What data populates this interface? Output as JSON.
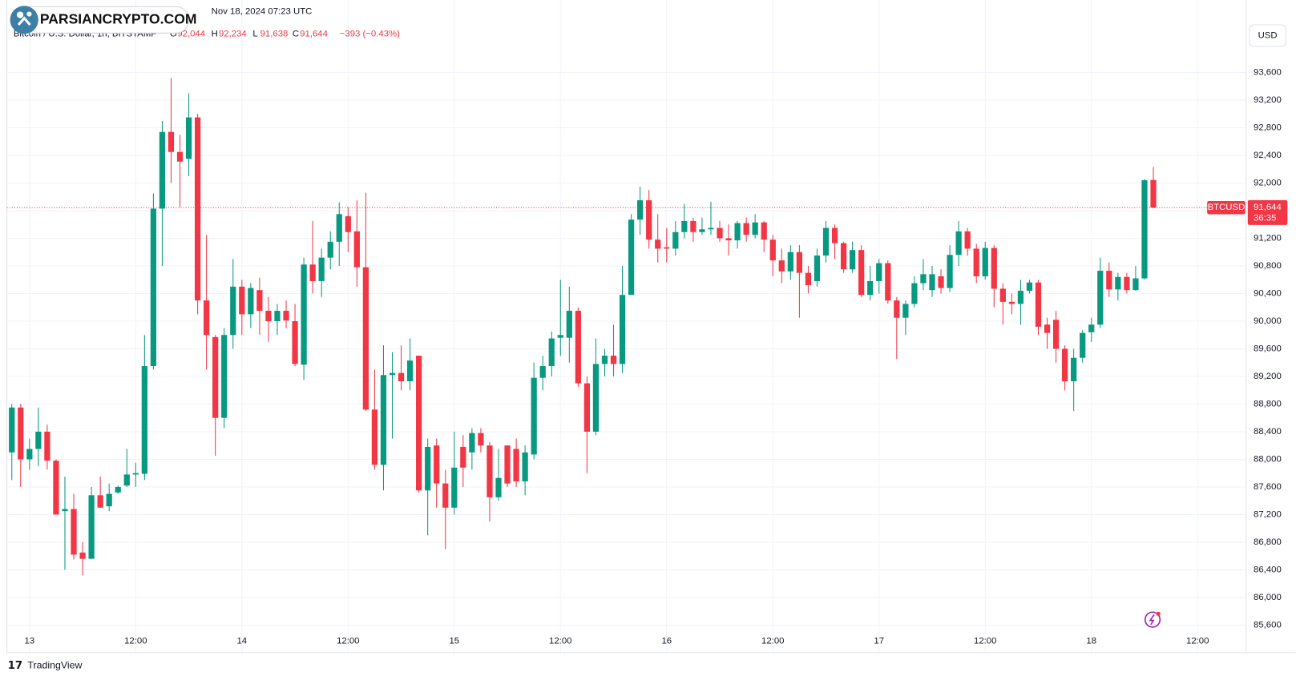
{
  "chart_data": {
    "type": "candlestick",
    "watermark": "PARSIANCRYPTO.COM",
    "timestamp": "Nov 18, 2024 07:23 UTC",
    "symbol_title": "Bitcoin / U.S. Dollar, 1h, BITSTAMP",
    "legend_ohlc": [
      {
        "key": "O",
        "value": 92044,
        "label": "92,044"
      },
      {
        "key": "H",
        "value": 92234,
        "label": "92,234"
      },
      {
        "key": "L",
        "value": 91638,
        "label": "91,638"
      },
      {
        "key": "C",
        "value": 91644,
        "label": "91,644"
      }
    ],
    "change": "−393 (−0.43%)",
    "currency": "USD",
    "ticker": "BTCUSD",
    "last_price": {
      "value": 91644,
      "label": "91,644"
    },
    "countdown": "36:35",
    "brand": "TradingView",
    "up_color": "#089981",
    "down_color": "#f23645",
    "grid": true,
    "xlim": [
      -0.56,
      139.48
    ],
    "xticks": [
      {
        "value": 2,
        "label": "13"
      },
      {
        "value": 14,
        "label": "12:00"
      },
      {
        "value": 26,
        "label": "14"
      },
      {
        "value": 38,
        "label": "12:00"
      },
      {
        "value": 50,
        "label": "15"
      },
      {
        "value": 62,
        "label": "12:00"
      },
      {
        "value": 74,
        "label": "16"
      },
      {
        "value": 86,
        "label": "12:00"
      },
      {
        "value": 98,
        "label": "17"
      },
      {
        "value": 110,
        "label": "12:00"
      },
      {
        "value": 122,
        "label": "18"
      },
      {
        "value": 134,
        "label": "12:00"
      }
    ],
    "ylim": [
      85200,
      94650
    ],
    "yticks": [
      {
        "value": 85600,
        "label": "85,600"
      },
      {
        "value": 86000,
        "label": "86,000"
      },
      {
        "value": 86400,
        "label": "86,400"
      },
      {
        "value": 86800,
        "label": "86,800"
      },
      {
        "value": 87200,
        "label": "87,200"
      },
      {
        "value": 87600,
        "label": "87,600"
      },
      {
        "value": 88000,
        "label": "88,000"
      },
      {
        "value": 88400,
        "label": "88,400"
      },
      {
        "value": 88800,
        "label": "88,800"
      },
      {
        "value": 89200,
        "label": "89,200"
      },
      {
        "value": 89600,
        "label": "89,600"
      },
      {
        "value": 90000,
        "label": "90,000"
      },
      {
        "value": 90400,
        "label": "90,400"
      },
      {
        "value": 90800,
        "label": "90,800"
      },
      {
        "value": 91200,
        "label": "91,200"
      },
      {
        "value": 91600,
        "label": "91,600"
      },
      {
        "value": 92000,
        "label": "92,000"
      },
      {
        "value": 92400,
        "label": "92,400"
      },
      {
        "value": 92800,
        "label": "92,800"
      },
      {
        "value": 93200,
        "label": "93,200"
      },
      {
        "value": 93600,
        "label": "93,600"
      }
    ],
    "open": [
      88100,
      88750,
      88000,
      88150,
      88400,
      87980,
      87250,
      87280,
      86650,
      86560,
      87480,
      87320,
      87520,
      87620,
      87780,
      87790,
      89350,
      91630,
      92740,
      92450,
      92350,
      92950,
      90300,
      89770,
      88600,
      89800,
      90500,
      90100,
      90450,
      90150,
      90000,
      90150,
      90000,
      89370,
      90820,
      90580,
      90920,
      91150,
      91520,
      91300,
      90780,
      88720,
      87920,
      89220,
      89250,
      89130,
      89500,
      87550,
      88200,
      87650,
      87300,
      88180,
      88100,
      88380,
      88200,
      87450,
      88200,
      88150,
      87680,
      88070,
      89180,
      89350,
      89760,
      89760,
      90150,
      89100,
      88400,
      89380,
      89500,
      89380,
      90380,
      91470,
      91750,
      91180,
      91070,
      91050,
      91290,
      91450,
      91290,
      91330,
      91350,
      91200,
      91170,
      91420,
      91250,
      91430,
      91180,
      90880,
      90720,
      91000,
      90700,
      90580,
      90950,
      91350,
      91130,
      90750,
      91030,
      90380,
      90580,
      90840,
      90300,
      90050,
      90250,
      90550,
      90450,
      90650,
      90480,
      90960,
      91300,
      91050,
      90650,
      91060,
      90470,
      90280,
      90250,
      90440,
      90560,
      89950,
      90020,
      89600,
      89130,
      89470,
      89840,
      89950,
      90730,
      90460,
      90640,
      90450,
      90620,
      92044
    ],
    "high": [
      88800,
      88800,
      88300,
      88750,
      88500,
      88000,
      87750,
      87500,
      86800,
      87600,
      87750,
      87650,
      87620,
      88150,
      87950,
      89800,
      91850,
      92900,
      93520,
      92700,
      93300,
      93000,
      91250,
      89800,
      89900,
      90900,
      90600,
      90550,
      90630,
      90350,
      90250,
      90300,
      90250,
      90920,
      91450,
      91050,
      91300,
      91720,
      91650,
      91750,
      91860,
      89300,
      89650,
      89550,
      89650,
      89750,
      89500,
      88300,
      88300,
      87850,
      88400,
      88350,
      88450,
      88450,
      88250,
      88150,
      88200,
      88300,
      88200,
      89400,
      89500,
      89850,
      90600,
      90500,
      90200,
      89200,
      89750,
      89600,
      89950,
      90800,
      91550,
      91950,
      91900,
      91550,
      91350,
      91450,
      91700,
      91500,
      91500,
      91730,
      91450,
      91400,
      91450,
      91500,
      91550,
      91450,
      91250,
      91050,
      91100,
      91100,
      90800,
      91050,
      91450,
      91400,
      91150,
      91150,
      91100,
      90800,
      90900,
      90880,
      90350,
      90300,
      90650,
      90900,
      90800,
      90750,
      91100,
      91450,
      91350,
      91120,
      91150,
      91100,
      90550,
      90400,
      90600,
      90600,
      90600,
      90050,
      90150,
      89650,
      89600,
      89870,
      90050,
      90920,
      90850,
      90700,
      90700,
      90800,
      92060,
      92234
    ],
    "low": [
      87700,
      87600,
      87850,
      87900,
      87850,
      87200,
      86400,
      86550,
      86320,
      86560,
      87300,
      87250,
      87500,
      87600,
      87600,
      87700,
      89300,
      90800,
      92000,
      91650,
      92100,
      90100,
      89300,
      88050,
      88450,
      89600,
      89800,
      89900,
      89800,
      89700,
      89800,
      89900,
      89350,
      89150,
      90400,
      90350,
      90750,
      90800,
      91000,
      90500,
      88700,
      87850,
      87550,
      88300,
      89000,
      89000,
      87520,
      86900,
      87300,
      86700,
      87200,
      87600,
      87850,
      88100,
      87100,
      87400,
      87600,
      87600,
      87480,
      88000,
      89000,
      89200,
      89500,
      89400,
      89050,
      87800,
      88350,
      89200,
      89200,
      89250,
      90400,
      91250,
      91050,
      90850,
      90850,
      90950,
      91200,
      91150,
      91250,
      91250,
      91150,
      90950,
      91050,
      91150,
      91200,
      91000,
      90650,
      90550,
      90600,
      90050,
      90400,
      90500,
      90850,
      90900,
      90700,
      90700,
      90350,
      90300,
      90400,
      90250,
      89450,
      89800,
      90200,
      90450,
      90350,
      90400,
      90420,
      90800,
      90950,
      90550,
      90600,
      90200,
      89950,
      90100,
      89950,
      90400,
      89800,
      89600,
      89400,
      89000,
      88700,
      89400,
      89700,
      89900,
      90350,
      90300,
      90400,
      90440,
      90600,
      91638
    ],
    "close": [
      88750,
      88000,
      88150,
      88400,
      87980,
      87200,
      87280,
      86620,
      86560,
      87480,
      87300,
      87500,
      87600,
      87780,
      87800,
      89350,
      91630,
      92740,
      92450,
      92310,
      92950,
      90300,
      89800,
      88600,
      89800,
      90500,
      90100,
      90480,
      90150,
      90000,
      90150,
      90010,
      89380,
      90820,
      90580,
      90920,
      91150,
      91550,
      91290,
      90780,
      88720,
      87920,
      89220,
      89250,
      89130,
      89430,
      87550,
      88180,
      87650,
      87300,
      87880,
      87880,
      88380,
      88200,
      87450,
      87730,
      87650,
      87680,
      88100,
      89180,
      89350,
      89750,
      89800,
      90150,
      89100,
      88400,
      89380,
      89500,
      89380,
      90380,
      91470,
      91750,
      91180,
      91050,
      91050,
      91290,
      91450,
      91290,
      91330,
      91350,
      91200,
      91170,
      91420,
      91250,
      91430,
      91180,
      90880,
      90720,
      91000,
      90700,
      90520,
      90950,
      91350,
      91130,
      90750,
      91030,
      90380,
      90580,
      90840,
      90300,
      90050,
      90250,
      90550,
      90680,
      90680,
      90480,
      90960,
      91300,
      91050,
      90650,
      91060,
      90470,
      90280,
      90250,
      90440,
      90560,
      89920,
      89830,
      89600,
      89130,
      89470,
      89830,
      89950,
      90730,
      90460,
      90640,
      90450,
      90620,
      92040,
      91644
    ]
  }
}
